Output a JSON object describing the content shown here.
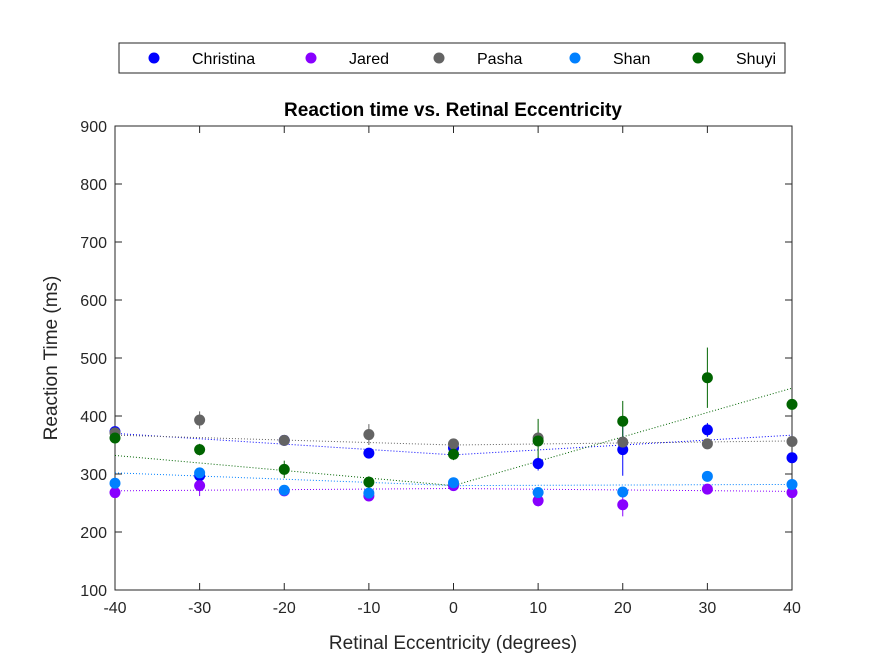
{
  "chart_data": {
    "type": "scatter",
    "title": "Reaction time vs. Retinal Eccentricity",
    "xlabel": "Retinal Eccentricity (degrees)",
    "ylabel": "Reaction Time (ms)",
    "xlim": [
      -40,
      40
    ],
    "ylim": [
      100,
      900
    ],
    "xticks": [
      -40,
      -30,
      -20,
      -10,
      0,
      10,
      20,
      30,
      40
    ],
    "yticks": [
      100,
      200,
      300,
      400,
      500,
      600,
      700,
      800,
      900
    ],
    "grid": false,
    "legend_position": "top, outside, horizontal",
    "x": [
      -40,
      -30,
      -20,
      -10,
      0,
      10,
      20,
      30,
      40
    ],
    "series": [
      {
        "name": "Christina",
        "color": "#0000ff",
        "values": [
          373,
          297,
          358,
          336,
          345,
          318,
          342,
          376,
          328
        ],
        "errors": [
          8,
          8,
          8,
          8,
          8,
          12,
          45,
          12,
          8
        ],
        "fit": {
          "left": [
            -40,
            370
          ],
          "vertex": [
            0,
            333
          ],
          "right": [
            40,
            367
          ]
        }
      },
      {
        "name": "Jared",
        "color": "#8800ff",
        "values": [
          268,
          280,
          271,
          262,
          280,
          254,
          247,
          274,
          268
        ],
        "errors": [
          8,
          18,
          8,
          8,
          8,
          10,
          20,
          8,
          8
        ],
        "fit": {
          "left": [
            -40,
            271
          ],
          "vertex": [
            0,
            275
          ],
          "right": [
            40,
            270
          ]
        }
      },
      {
        "name": "Pasha",
        "color": "#646464",
        "values": [
          371,
          393,
          358,
          368,
          352,
          362,
          355,
          352,
          356
        ],
        "errors": [
          8,
          15,
          8,
          18,
          8,
          10,
          8,
          8,
          8
        ],
        "fit": {
          "left": [
            -40,
            367
          ],
          "vertex": [
            0,
            350
          ],
          "right": [
            40,
            357
          ]
        }
      },
      {
        "name": "Shan",
        "color": "#0080ff",
        "values": [
          284,
          302,
          272,
          267,
          285,
          268,
          269,
          296,
          282
        ],
        "errors": [
          8,
          8,
          8,
          8,
          8,
          8,
          8,
          8,
          8
        ],
        "fit": {
          "left": [
            -40,
            302
          ],
          "vertex": [
            0,
            280
          ],
          "right": [
            40,
            282
          ]
        }
      },
      {
        "name": "Shuyi",
        "color": "#006400",
        "values": [
          362,
          342,
          308,
          286,
          334,
          357,
          391,
          466,
          420
        ],
        "errors": [
          10,
          10,
          15,
          10,
          10,
          38,
          35,
          52,
          10
        ],
        "fit": {
          "left": [
            -40,
            332
          ],
          "vertex": [
            0,
            280
          ],
          "right": [
            40,
            448
          ]
        }
      }
    ]
  }
}
